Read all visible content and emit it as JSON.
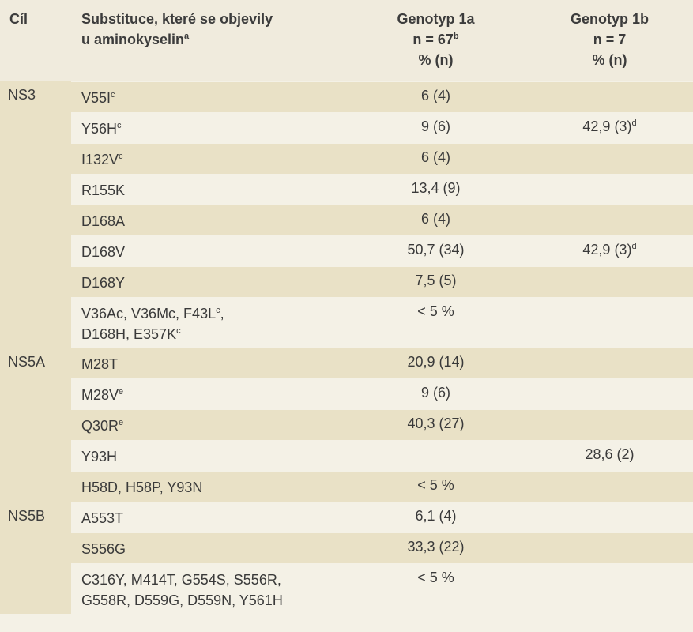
{
  "header": {
    "target": "Cíl",
    "substitutions_line1": "Substituce, které se objevily",
    "substitutions_line2": "u aminokyselin",
    "substitutions_sup": "a",
    "g1a_line1": "Genotyp 1a",
    "g1a_line2": "n = 67",
    "g1a_sup": "b",
    "g1a_line3": "% (n)",
    "g1b_line1": "Genotyp 1b",
    "g1b_line2": "n = 7",
    "g1b_line3": "% (n)"
  },
  "groups": [
    {
      "target": "NS3",
      "rows": [
        {
          "sub": "V55I",
          "sub_sup": "c",
          "g1a": "6 (4)",
          "g1b": "",
          "g1b_sup": ""
        },
        {
          "sub": "Y56H",
          "sub_sup": "c",
          "g1a": "9 (6)",
          "g1b": "42,9 (3)",
          "g1b_sup": "d"
        },
        {
          "sub": "I132V",
          "sub_sup": "c",
          "g1a": "6 (4)",
          "g1b": "",
          "g1b_sup": ""
        },
        {
          "sub": "R155K",
          "sub_sup": "",
          "g1a": "13,4 (9)",
          "g1b": "",
          "g1b_sup": ""
        },
        {
          "sub": "D168A",
          "sub_sup": "",
          "g1a": "6 (4)",
          "g1b": "",
          "g1b_sup": ""
        },
        {
          "sub": "D168V",
          "sub_sup": "",
          "g1a": "50,7 (34)",
          "g1b": "42,9 (3)",
          "g1b_sup": "d"
        },
        {
          "sub": "D168Y",
          "sub_sup": "",
          "g1a": "7,5 (5)",
          "g1b": "",
          "g1b_sup": ""
        },
        {
          "sub_line1": "V36Ac, V36Mc, F43L",
          "sub_line1_sup": "c",
          "sub_line1_tail": ",",
          "sub_line2": "D168H, E357K",
          "sub_line2_sup": "c",
          "g1a": "< 5 %",
          "g1b": "",
          "g1b_sup": ""
        }
      ]
    },
    {
      "target": "NS5A",
      "rows": [
        {
          "sub": "M28T",
          "sub_sup": "",
          "g1a": "20,9 (14)",
          "g1b": "",
          "g1b_sup": ""
        },
        {
          "sub": "M28V",
          "sub_sup": "e",
          "g1a": "9 (6)",
          "g1b": "",
          "g1b_sup": ""
        },
        {
          "sub": "Q30R",
          "sub_sup": "e",
          "g1a": "40,3 (27)",
          "g1b": "",
          "g1b_sup": ""
        },
        {
          "sub": "Y93H",
          "sub_sup": "",
          "g1a": "",
          "g1b": "28,6 (2)",
          "g1b_sup": ""
        },
        {
          "sub": "H58D, H58P, Y93N",
          "sub_sup": "",
          "g1a": "< 5 %",
          "g1b": "",
          "g1b_sup": ""
        }
      ]
    },
    {
      "target": "NS5B",
      "rows": [
        {
          "sub": "A553T",
          "sub_sup": "",
          "g1a": "6,1 (4)",
          "g1b": "",
          "g1b_sup": ""
        },
        {
          "sub": "S556G",
          "sub_sup": "",
          "g1a": "33,3 (22)",
          "g1b": "",
          "g1b_sup": ""
        },
        {
          "sub_line1": "C316Y, M414T, G554S, S556R,",
          "sub_line1_sup": "",
          "sub_line1_tail": "",
          "sub_line2": "G558R, D559G, D559N, Y561H",
          "sub_line2_sup": "",
          "g1a": "< 5 %",
          "g1b": "",
          "g1b_sup": ""
        }
      ]
    }
  ]
}
